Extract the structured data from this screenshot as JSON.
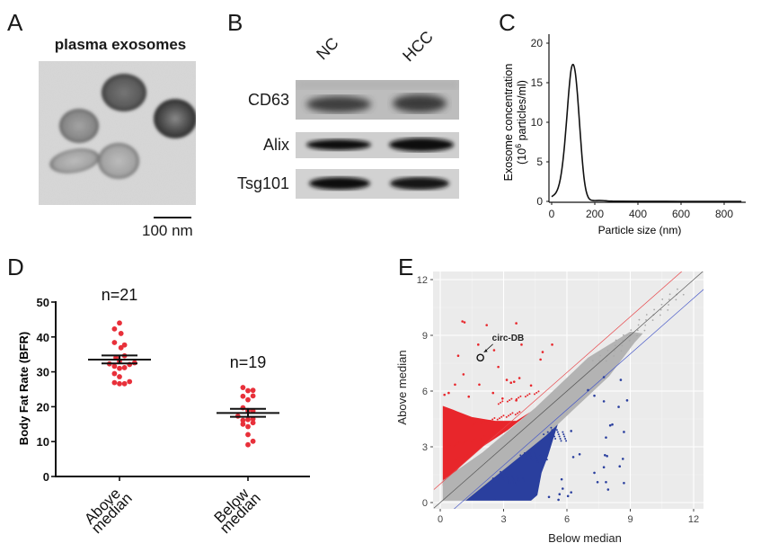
{
  "figure": {
    "panels": {
      "A": {
        "letter": "A",
        "title": "plasma exosomes",
        "image_description": "transmission electron micrograph of plasma exosomes",
        "scale_bar_label": "100 nm"
      },
      "B": {
        "letter": "B",
        "lanes": [
          "NC",
          "HCC"
        ],
        "rows": [
          {
            "label": "CD63",
            "band_intensity": [
              0.55,
              0.6
            ]
          },
          {
            "label": "Alix",
            "band_intensity": [
              0.9,
              0.97
            ]
          },
          {
            "label": "Tsg101",
            "band_intensity": [
              0.92,
              0.92
            ]
          }
        ]
      },
      "C": {
        "letter": "C"
      },
      "D": {
        "letter": "D"
      },
      "E": {
        "letter": "E"
      }
    }
  },
  "chart_data": [
    {
      "panel": "C",
      "type": "line",
      "title": "",
      "xlabel": "Particle size (nm)",
      "ylabel_line1": "Exosome concentration",
      "ylabel_line2_prefix": "(10",
      "ylabel_line2_sup": "6",
      "ylabel_line2_suffix": " particles/ml)",
      "xlim": [
        0,
        880
      ],
      "ylim": [
        0,
        21
      ],
      "xticks": [
        0,
        200,
        400,
        600,
        800
      ],
      "yticks": [
        0,
        5,
        10,
        15,
        20
      ],
      "grid": false,
      "series": [
        {
          "name": "Exosome concentration",
          "x": [
            0,
            10,
            20,
            30,
            40,
            50,
            60,
            70,
            80,
            90,
            100,
            110,
            120,
            130,
            140,
            150,
            160,
            170,
            180,
            190,
            200,
            220,
            240,
            260,
            280,
            300,
            400,
            600,
            800,
            880
          ],
          "y": [
            0.6,
            0.8,
            1.1,
            1.7,
            2.8,
            4.6,
            7.2,
            10.5,
            14.0,
            16.6,
            17.3,
            16.2,
            13.4,
            9.6,
            5.9,
            3.0,
            1.3,
            0.5,
            0.2,
            0.12,
            0.1,
            0.12,
            0.1,
            0.05,
            0.03,
            0.02,
            0.01,
            0.0,
            0.0,
            0.0
          ]
        }
      ]
    },
    {
      "panel": "D",
      "type": "scatter",
      "title": "",
      "xlabel": "",
      "ylabel": "Body Fat Rate (BFR)",
      "ylim": [
        0,
        50
      ],
      "yticks": [
        0,
        10,
        20,
        30,
        40,
        50
      ],
      "categories": [
        "Above median",
        "Below median"
      ],
      "category_label_lines": [
        [
          "Above",
          "median"
        ],
        [
          "Below",
          "median"
        ]
      ],
      "grid": false,
      "point_color": "#e8303a",
      "groups": [
        {
          "name": "Above median",
          "n_label": "n=21",
          "mean": 33.5,
          "sem_low": 32.4,
          "sem_high": 34.7,
          "points": [
            {
              "offset": 0,
              "value": 44.0
            },
            {
              "offset": -1,
              "value": 42.3
            },
            {
              "offset": 0.3,
              "value": 41.0
            },
            {
              "offset": -1,
              "value": 38.4
            },
            {
              "offset": 0.3,
              "value": 36.9
            },
            {
              "offset": 1,
              "value": 37.7
            },
            {
              "offset": -0.7,
              "value": 34.1
            },
            {
              "offset": 1,
              "value": 34.6
            },
            {
              "offset": -2,
              "value": 32.3
            },
            {
              "offset": -1,
              "value": 31.6
            },
            {
              "offset": 0,
              "value": 31.0
            },
            {
              "offset": 1,
              "value": 31.2
            },
            {
              "offset": 2,
              "value": 32.1
            },
            {
              "offset": 3,
              "value": 32.6
            },
            {
              "offset": -1,
              "value": 29.5
            },
            {
              "offset": 0,
              "value": 28.6
            },
            {
              "offset": -1,
              "value": 26.9
            },
            {
              "offset": 0,
              "value": 26.6
            },
            {
              "offset": 1,
              "value": 26.6
            },
            {
              "offset": 2,
              "value": 27.2
            },
            {
              "offset": 0,
              "value": 33.0
            }
          ]
        },
        {
          "name": "Below median",
          "n_label": "n=19",
          "mean": 18.2,
          "sem_low": 17.1,
          "sem_high": 19.4,
          "points": [
            {
              "offset": -1,
              "value": 25.5
            },
            {
              "offset": 0,
              "value": 24.6
            },
            {
              "offset": 1,
              "value": 24.7
            },
            {
              "offset": -1,
              "value": 23.0
            },
            {
              "offset": 0,
              "value": 22.0
            },
            {
              "offset": 1,
              "value": 23.1
            },
            {
              "offset": -1,
              "value": 19.7
            },
            {
              "offset": 0,
              "value": 18.9
            },
            {
              "offset": 1,
              "value": 18.8
            },
            {
              "offset": -2,
              "value": 17.3
            },
            {
              "offset": -1,
              "value": 16.1
            },
            {
              "offset": 0,
              "value": 16.3
            },
            {
              "offset": 1,
              "value": 16.5
            },
            {
              "offset": -1,
              "value": 15.0
            },
            {
              "offset": 0,
              "value": 14.3
            },
            {
              "offset": 1,
              "value": 15.4
            },
            {
              "offset": 0,
              "value": 12.0
            },
            {
              "offset": 0,
              "value": 9.1
            },
            {
              "offset": 1,
              "value": 10.1
            }
          ]
        }
      ]
    },
    {
      "panel": "E",
      "type": "scatter",
      "title": "",
      "xlabel": "Below median",
      "ylabel": "Above median",
      "xlim": [
        -0.3,
        12.5
      ],
      "ylim": [
        -0.3,
        12.5
      ],
      "xticks": [
        0,
        3,
        6,
        9,
        12
      ],
      "yticks": [
        0,
        3,
        6,
        9,
        12
      ],
      "grid": true,
      "background": "#ebebeb",
      "reference_lines": [
        {
          "name": "identity",
          "slope": 1,
          "intercept": 0,
          "color": "#555555"
        },
        {
          "name": "upper-threshold",
          "slope": 1,
          "intercept": 1,
          "color": "#e8464a"
        },
        {
          "name": "lower-threshold",
          "slope": 1,
          "intercept": -1,
          "color": "#4a5bc8"
        }
      ],
      "series": [
        {
          "name": "Up-regulated",
          "color": "#e8262b",
          "description": "dense cloud above upper threshold, x 0.1-5, y 0.8-6 plus sparse outliers"
        },
        {
          "name": "Unchanged",
          "color": "#b3b3b3",
          "description": "dense band along identity line from 0 to ~11.5"
        },
        {
          "name": "Down-regulated",
          "color": "#2a3f9e",
          "description": "dense cloud below lower threshold, x 1-5, y 0.1-4 plus sparse outliers"
        }
      ],
      "outliers_up": [
        [
          1.05,
          9.75
        ],
        [
          1.15,
          9.7
        ],
        [
          2.2,
          9.55
        ],
        [
          3.6,
          9.65
        ],
        [
          1.8,
          8.5
        ],
        [
          2.55,
          8.2
        ],
        [
          0.85,
          7.9
        ],
        [
          3.85,
          8.5
        ],
        [
          4.85,
          8.1
        ],
        [
          5.3,
          8.5
        ],
        [
          4.75,
          7.7
        ],
        [
          2.75,
          7.3
        ],
        [
          1.1,
          6.9
        ],
        [
          3.15,
          6.6
        ],
        [
          3.5,
          6.5
        ],
        [
          3.75,
          6.7
        ],
        [
          3.35,
          6.45
        ],
        [
          0.7,
          6.35
        ],
        [
          1.85,
          6.35
        ],
        [
          4.3,
          6.3
        ],
        [
          0.2,
          5.8
        ],
        [
          0.4,
          5.9
        ],
        [
          2.5,
          5.9
        ],
        [
          1.35,
          5.7
        ],
        [
          2.95,
          5.6
        ],
        [
          3.6,
          5.5
        ]
      ],
      "outliers_down": [
        [
          8.55,
          6.6
        ],
        [
          7.75,
          6.75
        ],
        [
          7.0,
          6.05
        ],
        [
          7.3,
          5.75
        ],
        [
          7.75,
          5.45
        ],
        [
          8.85,
          5.5
        ],
        [
          8.45,
          5.15
        ],
        [
          8.15,
          4.2
        ],
        [
          8.05,
          4.15
        ],
        [
          8.7,
          3.8
        ],
        [
          6.2,
          3.85
        ],
        [
          7.85,
          3.5
        ],
        [
          6.6,
          2.6
        ],
        [
          6.3,
          2.45
        ],
        [
          7.8,
          2.55
        ],
        [
          7.9,
          2.5
        ],
        [
          8.65,
          2.35
        ],
        [
          7.75,
          1.9
        ],
        [
          8.5,
          1.95
        ],
        [
          7.3,
          1.6
        ],
        [
          5.75,
          1.25
        ],
        [
          7.45,
          1.1
        ],
        [
          7.85,
          1.1
        ],
        [
          8.7,
          1.05
        ],
        [
          5.8,
          0.75
        ],
        [
          7.95,
          0.7
        ],
        [
          6.2,
          0.55
        ],
        [
          6.05,
          0.35
        ],
        [
          5.65,
          0.45
        ],
        [
          5.15,
          0.3
        ],
        [
          5.6,
          0.15
        ]
      ],
      "annotation": {
        "label": "circ-DB",
        "x": 1.9,
        "y": 7.8
      }
    }
  ]
}
